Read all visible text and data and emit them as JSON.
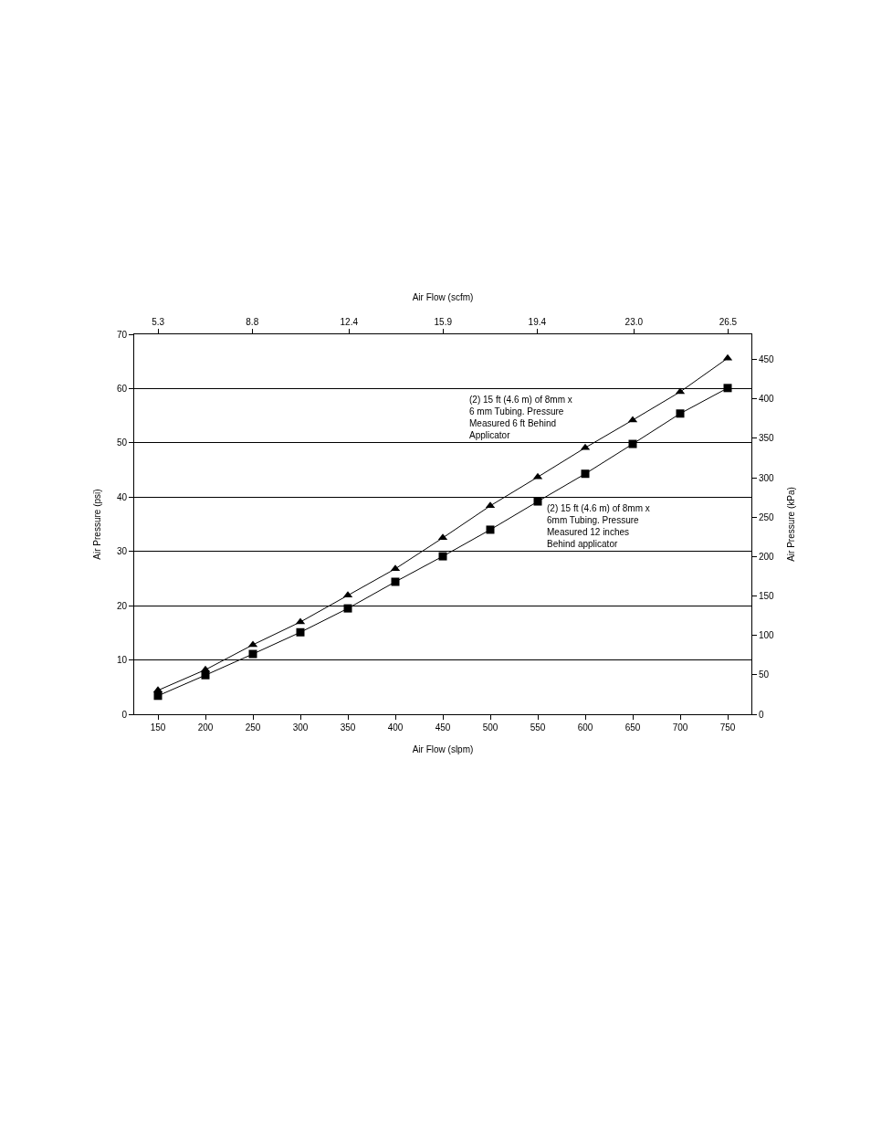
{
  "chart_data": {
    "type": "line",
    "xlabel": "Air Flow (slpm)",
    "ylabel": "Air Pressure (psi)",
    "y2label": "Air Pressure (kPa)",
    "x2label": "Air Flow (scfm)",
    "x": [
      150,
      200,
      250,
      300,
      350,
      400,
      450,
      500,
      550,
      600,
      650,
      700,
      750
    ],
    "series": [
      {
        "color": "#000000",
        "marker": "triangle",
        "values": [
          4.4,
          8.2,
          12.8,
          17.0,
          21.9,
          26.8,
          32.5,
          38.4,
          43.7,
          49.1,
          54.2,
          59.4,
          65.6
        ]
      },
      {
        "color": "#000000",
        "marker": "square",
        "values": [
          3.4,
          7.2,
          11.1,
          15.1,
          19.5,
          24.4,
          29.1,
          34.0,
          39.2,
          44.3,
          49.8,
          55.4,
          60.1
        ]
      }
    ],
    "xlim": [
      125,
      775
    ],
    "xticks": [
      150,
      200,
      250,
      300,
      350,
      400,
      450,
      500,
      550,
      600,
      650,
      700,
      750
    ],
    "ylim": [
      0,
      70
    ],
    "yticks": [
      0,
      10,
      20,
      30,
      40,
      50,
      60,
      70
    ],
    "y2lim": [
      0,
      482
    ],
    "y2ticks": [
      0,
      50,
      100,
      150,
      200,
      250,
      300,
      350,
      400,
      450
    ],
    "x2lim": [
      4.41,
      27.37
    ],
    "x2ticks": [
      {
        "value": 5.3,
        "label": "5.3"
      },
      {
        "value": 8.8,
        "label": "8.8"
      },
      {
        "value": 12.4,
        "label": "12.4"
      },
      {
        "value": 15.9,
        "label": "15.9"
      },
      {
        "value": 19.4,
        "label": "19.4"
      },
      {
        "value": 23.0,
        "label": "23.0"
      },
      {
        "value": 26.5,
        "label": "26.5"
      }
    ],
    "annotations": [
      "(2) 15 ft (4.6 m) of 8mm x\n6 mm Tubing. Pressure\nMeasured 6 ft Behind\nApplicator",
      "(2) 15 ft (4.6 m) of 8mm x\n6mm Tubing. Pressure\nMeasured 12 inches\nBehind applicator"
    ],
    "grid": "y",
    "line_style": "solid"
  }
}
